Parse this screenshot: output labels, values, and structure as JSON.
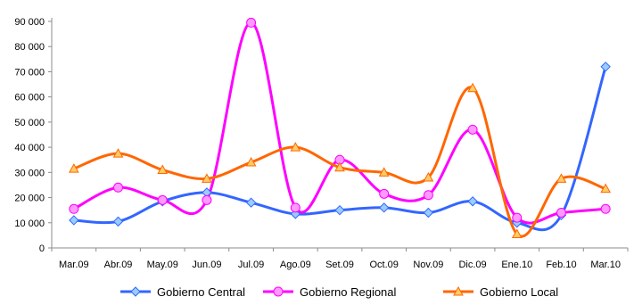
{
  "chart_data": {
    "type": "line",
    "title": "",
    "xlabel": "",
    "ylabel": "",
    "categories": [
      "Mar.09",
      "Abr.09",
      "May.09",
      "Jun.09",
      "Jul.09",
      "Ago.09",
      "Set.09",
      "Oct.09",
      "Nov.09",
      "Dic.09",
      "Ene.10",
      "Feb.10",
      "Mar.10"
    ],
    "ylim": [
      0,
      90000
    ],
    "yticks": [
      0,
      10000,
      20000,
      30000,
      40000,
      50000,
      60000,
      70000,
      80000,
      90000
    ],
    "ytick_labels": [
      "0",
      "10 000",
      "20 000",
      "30 000",
      "40 000",
      "50 000",
      "60 000",
      "70 000",
      "80 000",
      "90 000"
    ],
    "grid": false,
    "smooth": true,
    "legend_position": "bottom",
    "series": [
      {
        "name": "Gobierno Central",
        "color": "#3366FF",
        "marker": "diamond",
        "marker_fill": "#99CCFF",
        "values": [
          11000,
          10500,
          18500,
          22000,
          18000,
          13500,
          15000,
          16000,
          14000,
          18500,
          10000,
          13000,
          72000
        ]
      },
      {
        "name": "Gobierno Regional",
        "color": "#FF00FF",
        "marker": "circle",
        "marker_fill": "#FF99FF",
        "values": [
          15500,
          24000,
          19000,
          19000,
          89500,
          16000,
          35000,
          21500,
          21000,
          47000,
          12000,
          14000,
          15500
        ]
      },
      {
        "name": "Gobierno Local",
        "color": "#FF6600",
        "marker": "triangle",
        "marker_fill": "#FFCC66",
        "values": [
          31500,
          37500,
          31000,
          27500,
          34000,
          40000,
          32000,
          30000,
          28000,
          63500,
          5500,
          27500,
          23500
        ]
      }
    ]
  }
}
